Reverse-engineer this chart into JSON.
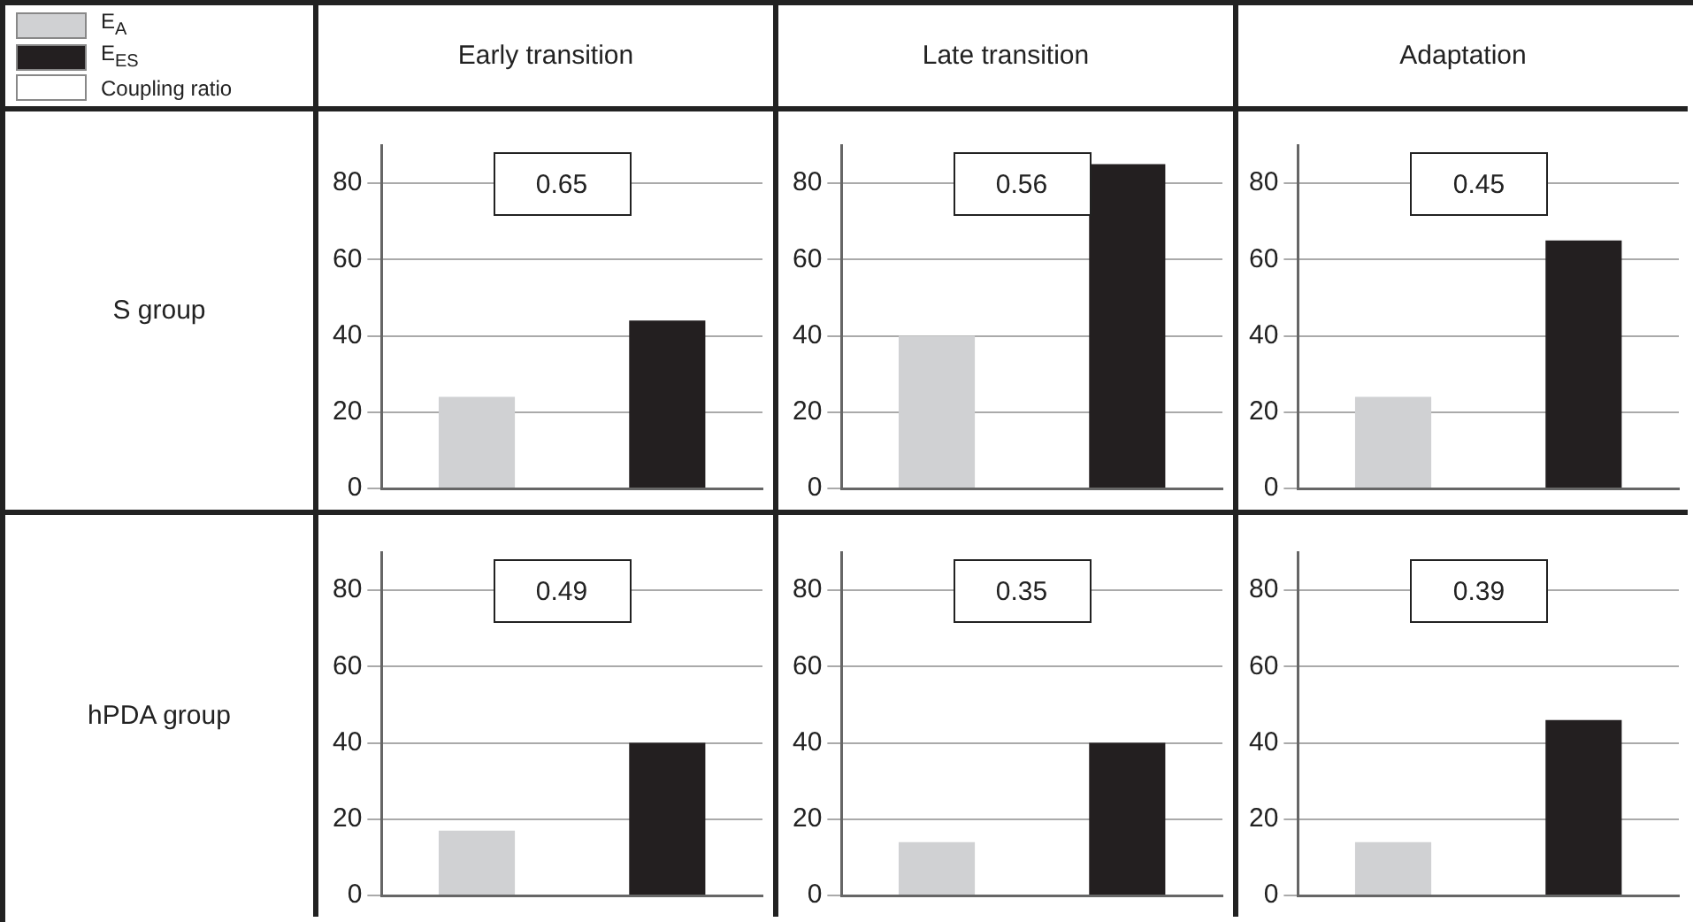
{
  "chart_data": [
    {
      "type": "bar",
      "title": "Early transition",
      "ylabel": "S group",
      "categories": [
        null,
        null
      ],
      "legend": "top left",
      "tick_labels": "y",
      "grid": "y",
      "ylim": [
        0,
        90
      ],
      "yticks": [
        0,
        20,
        40,
        60,
        80
      ],
      "annotations": [
        "Coupling ratio",
        "0.65"
      ],
      "series": [
        {
          "name": "E$_{A}$",
          "color": "#d0d1d3",
          "values": [
            24,
            null
          ]
        },
        {
          "name": "E$_{ES}$",
          "color": "#231f20",
          "values": [
            null,
            44
          ]
        }
      ]
    },
    {
      "type": "bar",
      "title": "Late transition",
      "categories": [
        null,
        null
      ],
      "tick_labels": "y",
      "grid": "y",
      "ylim": [
        0,
        90
      ],
      "yticks": [
        0,
        20,
        40,
        60,
        80
      ],
      "annotations": [
        "0.56"
      ],
      "series": [
        {
          "color": "#d0d1d3",
          "values": [
            40,
            null
          ]
        },
        {
          "color": "#231f20",
          "values": [
            null,
            85
          ]
        }
      ]
    },
    {
      "type": "bar",
      "title": "Adaptation",
      "categories": [
        null,
        null
      ],
      "tick_labels": "y",
      "grid": "y",
      "ylim": [
        0,
        90
      ],
      "yticks": [
        0,
        20,
        40,
        60,
        80
      ],
      "annotations": [
        "0.45"
      ],
      "series": [
        {
          "color": "#d0d1d3",
          "values": [
            24,
            null
          ]
        },
        {
          "color": "#231f20",
          "values": [
            null,
            65
          ]
        }
      ]
    },
    {
      "type": "bar",
      "ylabel": "hPDA group",
      "categories": [
        null,
        null
      ],
      "tick_labels": "y",
      "grid": "y",
      "ylim": [
        0,
        90
      ],
      "yticks": [
        0,
        20,
        40,
        60,
        80
      ],
      "annotations": [
        "0.49"
      ],
      "series": [
        {
          "color": "#d0d1d3",
          "values": [
            17,
            null
          ]
        },
        {
          "color": "#231f20",
          "values": [
            null,
            40
          ]
        }
      ]
    },
    {
      "type": "bar",
      "categories": [
        null,
        null
      ],
      "tick_labels": "y",
      "grid": "y",
      "ylim": [
        0,
        90
      ],
      "yticks": [
        0,
        20,
        40,
        60,
        80
      ],
      "annotations": [
        "0.35"
      ],
      "series": [
        {
          "color": "#d0d1d3",
          "values": [
            14,
            null
          ]
        },
        {
          "color": "#231f20",
          "values": [
            null,
            40
          ]
        }
      ]
    },
    {
      "type": "bar",
      "categories": [
        null,
        null
      ],
      "tick_labels": "y",
      "grid": "y",
      "ylim": [
        0,
        90
      ],
      "yticks": [
        0,
        20,
        40,
        60,
        80
      ],
      "annotations": [
        "0.39"
      ],
      "series": [
        {
          "color": "#d0d1d3",
          "values": [
            14,
            null
          ]
        },
        {
          "color": "#231f20",
          "values": [
            null,
            46
          ]
        }
      ]
    }
  ]
}
